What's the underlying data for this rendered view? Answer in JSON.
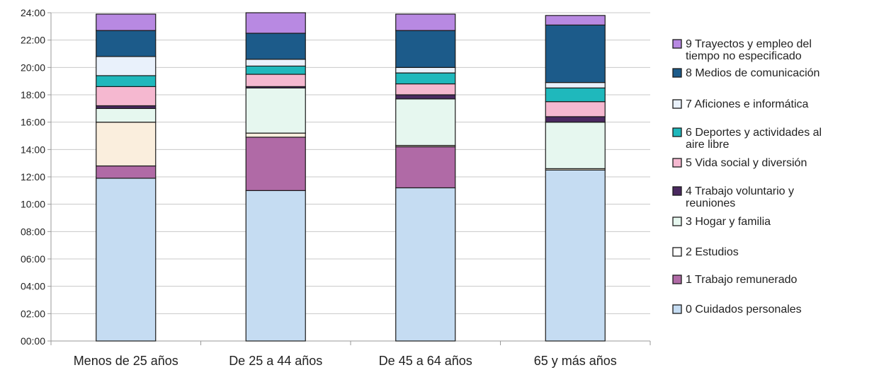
{
  "chart_data": {
    "type": "bar",
    "stacked": true,
    "orientation": "vertical",
    "categories": [
      "Menos de 25 años",
      "De 25 a 44 años",
      "De 45 a 64 años",
      "65 y más años"
    ],
    "y_ticks": [
      "00:00",
      "02:00",
      "04:00",
      "06:00",
      "08:00",
      "10:00",
      "12:00",
      "14:00",
      "16:00",
      "18:00",
      "20:00",
      "22:00",
      "24:00"
    ],
    "ylim": [
      0,
      24
    ],
    "y_unit": "hours",
    "grid": true,
    "legend_position": "right",
    "series": [
      {
        "name": "0 Cuidados personales",
        "color": "#c5dcf2",
        "values": [
          11.9,
          11.0,
          11.2,
          12.5
        ]
      },
      {
        "name": "1 Trabajo remunerado",
        "color": "#b06aa6",
        "values": [
          0.9,
          3.9,
          3.0,
          0.0
        ]
      },
      {
        "name": "2 Estudios",
        "color": "#faeedd",
        "values": [
          3.2,
          0.3,
          0.1,
          0.1
        ]
      },
      {
        "name": "3 Hogar y familia",
        "color": "#e6f7ef",
        "values": [
          1.0,
          3.3,
          3.4,
          3.4
        ]
      },
      {
        "name": "4 Trabajo voluntario y reuniones",
        "color": "#4a2960",
        "values": [
          0.2,
          0.1,
          0.3,
          0.4
        ]
      },
      {
        "name": "5 Vida social y diversión",
        "color": "#f5b8d0",
        "values": [
          1.4,
          0.9,
          0.8,
          1.1
        ]
      },
      {
        "name": "6 Deportes y actividades al aire libre",
        "color": "#1fb8bc",
        "values": [
          0.8,
          0.6,
          0.8,
          1.0
        ]
      },
      {
        "name": "7 Aficiones e informática",
        "color": "#e9f1fb",
        "values": [
          1.4,
          0.5,
          0.4,
          0.4
        ]
      },
      {
        "name": "8 Medios de comunicación",
        "color": "#1c5b8a",
        "values": [
          1.9,
          1.9,
          2.7,
          4.2
        ]
      },
      {
        "name": "9 Trayectos y empleo del tiempo no especificado",
        "color": "#b889e2",
        "values": [
          1.2,
          1.5,
          1.2,
          0.7
        ]
      }
    ],
    "legend_items": [
      {
        "name": "9 Trayectos y empleo del tiempo no especificado",
        "lines": [
          "9 Trayectos y empleo del",
          "tiempo no especificado"
        ],
        "color": "#b889e2"
      },
      {
        "name": "8 Medios de comunicación",
        "lines": [
          "8 Medios de comunicación"
        ],
        "color": "#1c5b8a"
      },
      {
        "name": "7 Aficiones e informática",
        "lines": [
          "7 Aficiones e informática"
        ],
        "color": "#e9f1fb"
      },
      {
        "name": "6 Deportes y actividades al aire libre",
        "lines": [
          "6 Deportes y actividades al",
          "aire libre"
        ],
        "color": "#1fb8bc"
      },
      {
        "name": "5 Vida social y diversión",
        "lines": [
          "5 Vida social y diversión"
        ],
        "color": "#f5b8d0"
      },
      {
        "name": "4 Trabajo voluntario y reuniones",
        "lines": [
          "4 Trabajo voluntario y",
          "reuniones"
        ],
        "color": "#4a2960"
      },
      {
        "name": "3 Hogar y familia",
        "lines": [
          "3 Hogar y familia"
        ],
        "color": "#e6f7ef"
      },
      {
        "name": "2 Estudios",
        "lines": [
          "2 Estudios"
        ],
        "color": "#ffffff"
      },
      {
        "name": "1 Trabajo remunerado",
        "lines": [
          "1 Trabajo remunerado"
        ],
        "color": "#b06aa6"
      },
      {
        "name": "0 Cuidados personales",
        "lines": [
          "0 Cuidados personales"
        ],
        "color": "#c5dcf2"
      }
    ]
  }
}
